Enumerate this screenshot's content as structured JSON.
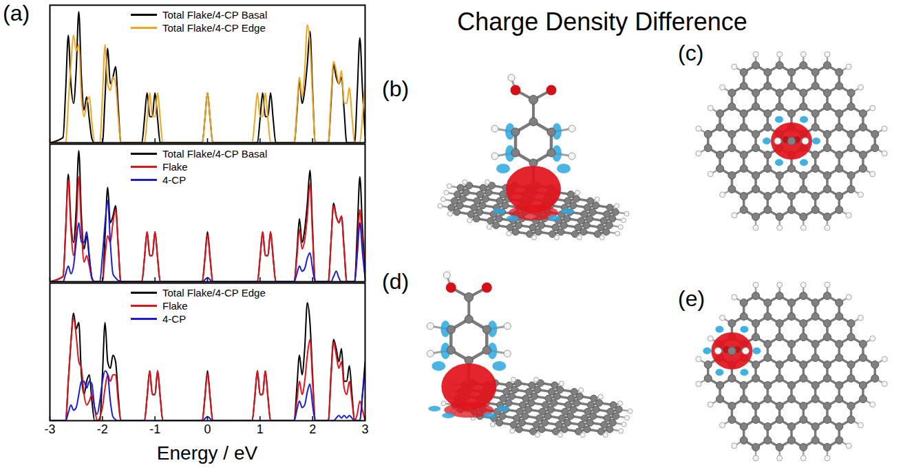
{
  "figure": {
    "title": "Charge Density Difference",
    "panel_labels": [
      "(a)",
      "(b)",
      "(c)",
      "(d)",
      "(e)"
    ]
  },
  "chart_data": [
    {
      "type": "line",
      "xlim": [
        -3,
        3
      ],
      "xticks": [
        -3,
        -2,
        -1,
        0,
        1,
        2,
        3
      ],
      "ylim": [
        0,
        1.05
      ],
      "tick_labels": false,
      "legend": "top",
      "series": [
        {
          "name": "Total Flake/4-CP Basal",
          "color": "#000000",
          "x": [
            -3,
            -2.75,
            -2.7,
            -2.65,
            -2.6,
            -2.55,
            -2.5,
            -2.45,
            -2.4,
            -2.35,
            -2.3,
            -2.25,
            -2.2,
            -2.15,
            -2.0,
            -1.95,
            -1.9,
            -1.85,
            -1.8,
            -1.75,
            -1.7,
            -1.65,
            -1.25,
            -1.2,
            -1.15,
            -1.1,
            -1.05,
            -1.0,
            -0.95,
            -0.9,
            -0.1,
            -0.05,
            0,
            0.05,
            0.1,
            0.95,
            1.0,
            1.05,
            1.1,
            1.15,
            1.2,
            1.25,
            1.3,
            1.65,
            1.7,
            1.75,
            1.8,
            1.85,
            1.9,
            1.95,
            2.0,
            2.05,
            2.3,
            2.35,
            2.4,
            2.45,
            2.5,
            2.55,
            2.6,
            2.65,
            2.8,
            2.85,
            2.9,
            2.95,
            3
          ],
          "values": [
            0,
            0.04,
            0.4,
            0.82,
            0.45,
            0.3,
            0.55,
            1.0,
            0.5,
            0.25,
            0.35,
            0.18,
            0.03,
            0,
            0,
            0.35,
            0.72,
            0.45,
            0.5,
            0.58,
            0.28,
            0,
            0,
            0.18,
            0.38,
            0.2,
            0.2,
            0.38,
            0.18,
            0,
            0,
            0.18,
            0.38,
            0.18,
            0,
            0,
            0.18,
            0.38,
            0.2,
            0.2,
            0.38,
            0.18,
            0,
            0,
            0.22,
            0.48,
            0.3,
            0.4,
            0.6,
            0.85,
            0.4,
            0,
            0,
            0.3,
            0.6,
            0.5,
            0.45,
            0.5,
            0.25,
            0,
            0,
            0.38,
            0.8,
            0.4,
            0.05
          ]
        },
        {
          "name": "Total Flake/4-CP Edge",
          "color": "#f2a51a",
          "x": [
            -3,
            -2.7,
            -2.65,
            -2.6,
            -2.55,
            -2.5,
            -2.45,
            -2.4,
            -2.35,
            -2.3,
            -2.25,
            -2.2,
            -2.15,
            -2.05,
            -2.0,
            -1.95,
            -1.9,
            -1.85,
            -1.8,
            -1.75,
            -1.7,
            -1.65,
            -1.2,
            -1.15,
            -1.1,
            -1.05,
            -1.0,
            -0.95,
            -0.9,
            -0.85,
            -0.1,
            -0.05,
            0,
            0.05,
            0.1,
            0.85,
            0.9,
            0.95,
            1.0,
            1.05,
            1.1,
            1.15,
            1.2,
            1.65,
            1.7,
            1.75,
            1.8,
            1.85,
            1.9,
            1.95,
            2.0,
            2.05,
            2.3,
            2.35,
            2.4,
            2.45,
            2.5,
            2.55,
            2.6,
            2.65,
            2.7,
            2.75,
            2.8,
            2.9,
            2.95,
            3
          ],
          "values": [
            0,
            0,
            0.3,
            0.6,
            0.82,
            0.7,
            0.75,
            0.35,
            0.2,
            0.3,
            0.35,
            0.15,
            0,
            0,
            0.35,
            0.75,
            0.45,
            0.4,
            0.5,
            0.45,
            0.2,
            0,
            0,
            0.18,
            0.38,
            0.2,
            0.2,
            0.38,
            0.18,
            0,
            0,
            0.18,
            0.38,
            0.18,
            0,
            0,
            0.18,
            0.38,
            0.2,
            0.2,
            0.38,
            0.18,
            0,
            0,
            0.25,
            0.5,
            0.35,
            0.55,
            0.9,
            0.75,
            0.35,
            0,
            0,
            0.35,
            0.62,
            0.55,
            0.45,
            0.55,
            0.3,
            0.3,
            0.42,
            0.2,
            0,
            0,
            0.2,
            0.45
          ]
        }
      ]
    },
    {
      "type": "line",
      "xlim": [
        -3,
        3
      ],
      "xticks": [
        -3,
        -2,
        -1,
        0,
        1,
        2,
        3
      ],
      "ylim": [
        0,
        1.05
      ],
      "tick_labels": false,
      "legend": "top",
      "series": [
        {
          "name": "Total Flake/4-CP Basal",
          "color": "#000000",
          "x": [
            -3,
            -2.75,
            -2.7,
            -2.65,
            -2.6,
            -2.55,
            -2.5,
            -2.45,
            -2.4,
            -2.35,
            -2.3,
            -2.25,
            -2.2,
            -2.15,
            -2.0,
            -1.95,
            -1.9,
            -1.85,
            -1.8,
            -1.75,
            -1.7,
            -1.65,
            -1.25,
            -1.2,
            -1.15,
            -1.1,
            -1.05,
            -1.0,
            -0.95,
            -0.9,
            -0.1,
            -0.05,
            0,
            0.05,
            0.1,
            0.95,
            1.0,
            1.05,
            1.1,
            1.15,
            1.2,
            1.25,
            1.3,
            1.65,
            1.7,
            1.75,
            1.8,
            1.85,
            1.9,
            1.95,
            2.0,
            2.05,
            2.3,
            2.35,
            2.4,
            2.45,
            2.5,
            2.55,
            2.6,
            2.65,
            2.8,
            2.85,
            2.9,
            2.95,
            3
          ],
          "values": [
            0,
            0.04,
            0.4,
            0.82,
            0.45,
            0.3,
            0.55,
            1.0,
            0.5,
            0.25,
            0.35,
            0.18,
            0.03,
            0,
            0,
            0.35,
            0.72,
            0.45,
            0.5,
            0.58,
            0.28,
            0,
            0,
            0.18,
            0.38,
            0.2,
            0.2,
            0.38,
            0.18,
            0,
            0,
            0.18,
            0.38,
            0.18,
            0,
            0,
            0.18,
            0.38,
            0.2,
            0.2,
            0.38,
            0.18,
            0,
            0,
            0.22,
            0.48,
            0.3,
            0.4,
            0.6,
            0.85,
            0.4,
            0,
            0,
            0.3,
            0.6,
            0.5,
            0.45,
            0.5,
            0.25,
            0,
            0,
            0.38,
            0.8,
            0.4,
            0.05
          ]
        },
        {
          "name": "Flake",
          "color": "#e3121b",
          "x": [
            -3,
            -2.75,
            -2.7,
            -2.65,
            -2.6,
            -2.55,
            -2.5,
            -2.45,
            -2.4,
            -2.35,
            -2.3,
            -2.25,
            -2.2,
            -2.15,
            -2.0,
            -1.95,
            -1.9,
            -1.85,
            -1.8,
            -1.75,
            -1.7,
            -1.65,
            -1.25,
            -1.2,
            -1.15,
            -1.1,
            -1.05,
            -1.0,
            -0.95,
            -0.9,
            -0.1,
            -0.05,
            0,
            0.05,
            0.1,
            0.95,
            1.0,
            1.05,
            1.1,
            1.15,
            1.2,
            1.25,
            1.3,
            1.65,
            1.7,
            1.75,
            1.8,
            1.85,
            1.9,
            1.95,
            2.0,
            2.05,
            2.3,
            2.35,
            2.4,
            2.45,
            2.5,
            2.55,
            2.6,
            2.65,
            2.8,
            2.85,
            2.9,
            2.95,
            3
          ],
          "values": [
            0,
            0.04,
            0.38,
            0.78,
            0.4,
            0.2,
            0.4,
            0.8,
            0.4,
            0.15,
            0.2,
            0.12,
            0.02,
            0,
            0,
            0.2,
            0.35,
            0.3,
            0.45,
            0.55,
            0.28,
            0,
            0,
            0.18,
            0.38,
            0.2,
            0.2,
            0.38,
            0.18,
            0,
            0,
            0.17,
            0.36,
            0.17,
            0,
            0,
            0.18,
            0.38,
            0.2,
            0.2,
            0.38,
            0.18,
            0,
            0,
            0.18,
            0.4,
            0.25,
            0.32,
            0.5,
            0.75,
            0.35,
            0,
            0,
            0.3,
            0.58,
            0.5,
            0.45,
            0.5,
            0.25,
            0,
            0,
            0.25,
            0.55,
            0.28,
            0.03
          ]
        },
        {
          "name": "4-CP",
          "color": "#1a1adb",
          "x": [
            -3,
            -2.75,
            -2.7,
            -2.65,
            -2.6,
            -2.55,
            -2.5,
            -2.45,
            -2.4,
            -2.35,
            -2.3,
            -2.25,
            -2.2,
            -2.15,
            -2.05,
            -2.0,
            -1.95,
            -1.9,
            -1.85,
            -1.8,
            -1.75,
            -1.7,
            -1.6,
            -0.1,
            0,
            0.1,
            1.65,
            1.7,
            1.75,
            1.8,
            1.85,
            1.9,
            1.95,
            2.0,
            2.05,
            2.35,
            2.4,
            2.45,
            2.5,
            2.55,
            2.8,
            2.85,
            2.9,
            2.95,
            3
          ],
          "values": [
            0,
            0,
            0.06,
            0.12,
            0.06,
            0.12,
            0.3,
            0.45,
            0.3,
            0.3,
            0.38,
            0.2,
            0.03,
            0,
            0,
            0.2,
            0.45,
            0.62,
            0.3,
            0.06,
            0.03,
            0.01,
            0,
            0,
            0.03,
            0,
            0,
            0.06,
            0.12,
            0.08,
            0.1,
            0.18,
            0.22,
            0.1,
            0,
            0,
            0.04,
            0.08,
            0.03,
            0,
            0,
            0.2,
            0.45,
            0.22,
            0.03
          ]
        }
      ]
    },
    {
      "type": "line",
      "xlim": [
        -3,
        3
      ],
      "xticks": [
        -3,
        -2,
        -1,
        0,
        1,
        2,
        3
      ],
      "ylim": [
        0,
        1.05
      ],
      "tick_labels": "x",
      "legend": "top",
      "xlabel": "Energy / eV",
      "series": [
        {
          "name": "Total Flake/4-CP Edge",
          "color": "#000000",
          "x": [
            -3,
            -2.7,
            -2.65,
            -2.6,
            -2.55,
            -2.5,
            -2.45,
            -2.4,
            -2.35,
            -2.3,
            -2.25,
            -2.2,
            -2.15,
            -2.05,
            -2.0,
            -1.95,
            -1.9,
            -1.85,
            -1.8,
            -1.75,
            -1.7,
            -1.65,
            -1.2,
            -1.15,
            -1.1,
            -1.05,
            -1.0,
            -0.95,
            -0.9,
            -0.85,
            -0.1,
            -0.05,
            0,
            0.05,
            0.1,
            0.85,
            0.9,
            0.95,
            1.0,
            1.05,
            1.1,
            1.15,
            1.2,
            1.65,
            1.7,
            1.75,
            1.8,
            1.85,
            1.9,
            1.95,
            2.0,
            2.05,
            2.3,
            2.35,
            2.4,
            2.45,
            2.5,
            2.55,
            2.6,
            2.65,
            2.7,
            2.75,
            2.8,
            2.9,
            2.95,
            3
          ],
          "values": [
            0,
            0,
            0.3,
            0.6,
            0.82,
            0.7,
            0.75,
            0.35,
            0.2,
            0.3,
            0.35,
            0.15,
            0,
            0,
            0.35,
            0.75,
            0.45,
            0.4,
            0.5,
            0.45,
            0.2,
            0,
            0,
            0.18,
            0.38,
            0.2,
            0.2,
            0.38,
            0.18,
            0,
            0,
            0.18,
            0.38,
            0.18,
            0,
            0,
            0.18,
            0.38,
            0.2,
            0.2,
            0.38,
            0.18,
            0,
            0,
            0.25,
            0.5,
            0.35,
            0.55,
            0.9,
            0.75,
            0.35,
            0,
            0,
            0.35,
            0.62,
            0.55,
            0.45,
            0.55,
            0.3,
            0.3,
            0.42,
            0.2,
            0,
            0,
            0.2,
            0.45
          ]
        },
        {
          "name": "Flake",
          "color": "#e3121b",
          "x": [
            -3,
            -2.7,
            -2.65,
            -2.6,
            -2.55,
            -2.5,
            -2.45,
            -2.4,
            -2.35,
            -2.3,
            -2.25,
            -2.2,
            -2.15,
            -2.1,
            -2.0,
            -1.95,
            -1.9,
            -1.85,
            -1.8,
            -1.75,
            -1.7,
            -1.65,
            -1.2,
            -1.15,
            -1.1,
            -1.05,
            -1.0,
            -0.95,
            -0.9,
            -0.85,
            -0.1,
            -0.05,
            0,
            0.05,
            0.1,
            0.85,
            0.9,
            0.95,
            1.0,
            1.05,
            1.1,
            1.15,
            1.2,
            1.65,
            1.7,
            1.75,
            1.8,
            1.85,
            1.9,
            1.95,
            2.0,
            2.05,
            2.3,
            2.35,
            2.4,
            2.45,
            2.5,
            2.55,
            2.6,
            2.65,
            2.7,
            2.75,
            2.8,
            2.85,
            2.9,
            2.95,
            3
          ],
          "values": [
            0,
            0,
            0.3,
            0.6,
            0.78,
            0.65,
            0.45,
            0.4,
            0.2,
            0.12,
            0.15,
            0.2,
            0.1,
            0,
            0.1,
            0.25,
            0.35,
            0.3,
            0.35,
            0.35,
            0.15,
            0,
            0,
            0.18,
            0.38,
            0.2,
            0.2,
            0.38,
            0.18,
            0,
            0,
            0.17,
            0.36,
            0.17,
            0,
            0,
            0.18,
            0.38,
            0.2,
            0.2,
            0.38,
            0.18,
            0,
            0,
            0.15,
            0.3,
            0.2,
            0.3,
            0.5,
            0.62,
            0.3,
            0,
            0,
            0.32,
            0.6,
            0.5,
            0.4,
            0.45,
            0.25,
            0.2,
            0.3,
            0.15,
            0,
            0.05,
            0.15,
            0.08,
            0
          ]
        },
        {
          "name": "4-CP",
          "color": "#1a1adb",
          "x": [
            -3,
            -2.7,
            -2.65,
            -2.6,
            -2.55,
            -2.5,
            -2.45,
            -2.4,
            -2.35,
            -2.3,
            -2.25,
            -2.2,
            -2.15,
            -2.1,
            -2.05,
            -2.0,
            -1.95,
            -1.9,
            -1.85,
            -1.8,
            -1.7,
            -0.1,
            0,
            0.1,
            1.65,
            1.7,
            1.75,
            1.8,
            1.85,
            1.9,
            1.95,
            2.0,
            2.05,
            2.4,
            2.45,
            2.5,
            2.55,
            2.6,
            2.65,
            2.7,
            2.75,
            2.8,
            2.9,
            2.95,
            3
          ],
          "values": [
            0,
            0,
            0.06,
            0.12,
            0.08,
            0.1,
            0.2,
            0.3,
            0.3,
            0.25,
            0.3,
            0.28,
            0.1,
            0.05,
            0.15,
            0.3,
            0.38,
            0.35,
            0.15,
            0.03,
            0,
            0,
            0.03,
            0,
            0,
            0.08,
            0.15,
            0.1,
            0.12,
            0.22,
            0.28,
            0.12,
            0,
            0,
            0.02,
            0.04,
            0.02,
            0.04,
            0.02,
            0.04,
            0.02,
            0,
            0,
            0.2,
            0.38
          ]
        }
      ]
    }
  ]
}
